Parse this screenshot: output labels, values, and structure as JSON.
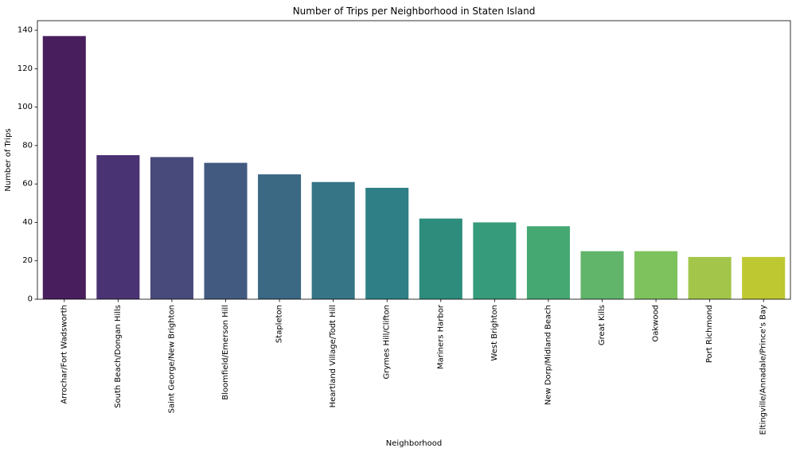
{
  "chart_data": {
    "type": "bar",
    "title": "Number of Trips per Neighborhood in Staten Island",
    "xlabel": "Neighborhood",
    "ylabel": "Number of Trips",
    "ylim": [
      0,
      145
    ],
    "yticks": [
      0,
      20,
      40,
      60,
      80,
      100,
      120,
      140
    ],
    "grid": false,
    "legend": "none",
    "categories": [
      "Arrochar/Fort Wadsworth",
      "South Beach/Dongan Hills",
      "Saint George/New Brighton",
      "Bloomfield/Emerson Hill",
      "Stapleton",
      "Heartland Village/Todt Hill",
      "Grymes Hill/Clifton",
      "Mariners Harbor",
      "West Brighton",
      "New Dorp/Midland Beach",
      "Great Kills",
      "Oakwood",
      "Port Richmond",
      "Eltingville/Annadale/Prince's Bay"
    ],
    "values": [
      137,
      75,
      74,
      71,
      65,
      61,
      58,
      42,
      40,
      38,
      25,
      25,
      22,
      22
    ],
    "colors": [
      "#481f5c",
      "#4a3373",
      "#484a7c",
      "#425a80",
      "#3b6883",
      "#357585",
      "#2e8086",
      "#2e8c7d",
      "#369b7a",
      "#45a873",
      "#61b56b",
      "#7ec25e",
      "#a3c64a",
      "#bec830"
    ]
  }
}
